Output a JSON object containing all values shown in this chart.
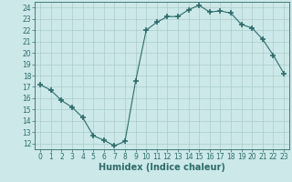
{
  "x": [
    0,
    1,
    2,
    3,
    4,
    5,
    6,
    7,
    8,
    9,
    10,
    11,
    12,
    13,
    14,
    15,
    16,
    17,
    18,
    19,
    20,
    21,
    22,
    23
  ],
  "y": [
    17.2,
    16.7,
    15.8,
    15.2,
    14.3,
    12.7,
    12.3,
    11.8,
    12.2,
    17.5,
    22.0,
    22.7,
    23.2,
    23.2,
    23.8,
    24.2,
    23.6,
    23.7,
    23.5,
    22.5,
    22.2,
    21.2,
    19.8,
    18.2
  ],
  "line_color": "#2d6b6b",
  "marker": "+",
  "marker_size": 4,
  "bg_color": "#cce8e8",
  "grid_color": "#aacccc",
  "xlabel": "Humidex (Indice chaleur)",
  "ylim": [
    11.5,
    24.5
  ],
  "xlim": [
    -0.5,
    23.5
  ],
  "yticks": [
    12,
    13,
    14,
    15,
    16,
    17,
    18,
    19,
    20,
    21,
    22,
    23,
    24
  ],
  "xticks": [
    0,
    1,
    2,
    3,
    4,
    5,
    6,
    7,
    8,
    9,
    10,
    11,
    12,
    13,
    14,
    15,
    16,
    17,
    18,
    19,
    20,
    21,
    22,
    23
  ],
  "tick_fontsize": 5.5,
  "label_fontsize": 7,
  "label_color": "#2d6b6b",
  "tick_color": "#2d6b6b",
  "spine_color": "#2d6b6b"
}
